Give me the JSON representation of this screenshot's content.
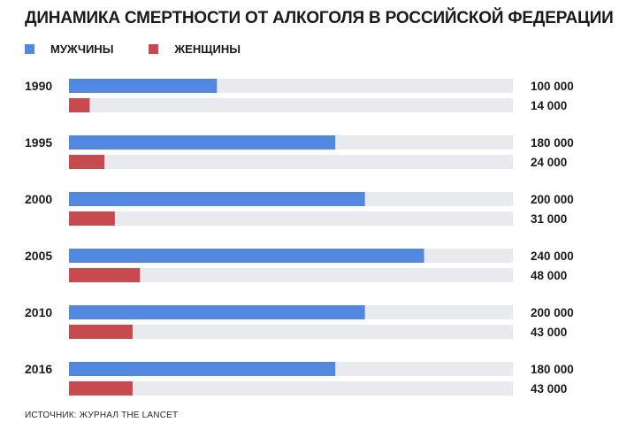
{
  "chart_data": {
    "type": "bar",
    "title": "ДИНАМИКА СМЕРТНОСТИ ОТ АЛКОГОЛЯ В РОССИЙСКОЙ ФЕДЕРАЦИИ",
    "categories": [
      "1990",
      "1995",
      "2000",
      "2005",
      "2010",
      "2016"
    ],
    "series": [
      {
        "name": "МУЖЧИНЫ",
        "values": [
          100000,
          180000,
          200000,
          240000,
          200000,
          180000
        ],
        "labels": [
          "100 000",
          "180 000",
          "200 000",
          "240 000",
          "200 000",
          "180 000"
        ]
      },
      {
        "name": "ЖЕНЩИНЫ",
        "values": [
          14000,
          24000,
          31000,
          48000,
          43000,
          43000
        ],
        "labels": [
          "14 000",
          "24 000",
          "31 000",
          "48 000",
          "43 000",
          "43 000"
        ]
      }
    ],
    "xlim": [
      0,
      300000
    ],
    "orientation": "horizontal",
    "legend": "top-left",
    "grid": false,
    "source": "ИСТОЧНИК: ЖУРНАЛ THE LANCET"
  },
  "colors": {
    "men": "#5288e0",
    "women": "#c84a4e",
    "track": "#e9eaed"
  }
}
